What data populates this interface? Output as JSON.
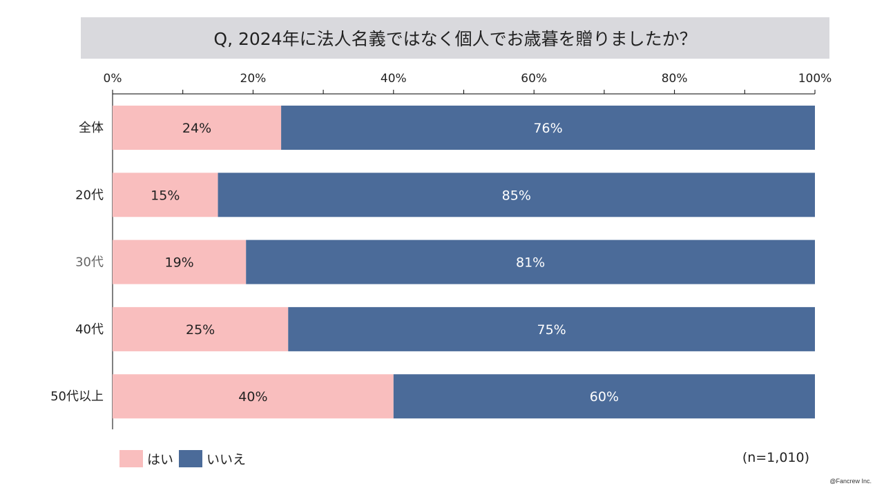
{
  "chart_data": {
    "type": "bar",
    "stacked": true,
    "orientation": "horizontal",
    "title": "Q, 2024年に法人名義ではなく個人でお歳暮を贈りましたか？",
    "categories": [
      "全体",
      "20代",
      "30代",
      "40代",
      "50代以上"
    ],
    "series": [
      {
        "name": "はい",
        "values": [
          24,
          15,
          19,
          25,
          40
        ],
        "color": "#f9bebe"
      },
      {
        "name": "いいえ",
        "values": [
          76,
          85,
          81,
          75,
          60
        ],
        "color": "#4b6b99"
      }
    ],
    "xlim": [
      0,
      100
    ],
    "xticks": [
      "0%",
      "20%",
      "40%",
      "60%",
      "80%",
      "100%"
    ],
    "legend": "bottom-left",
    "note": "(n=1,010)"
  },
  "credit": "@Fancrew Inc."
}
